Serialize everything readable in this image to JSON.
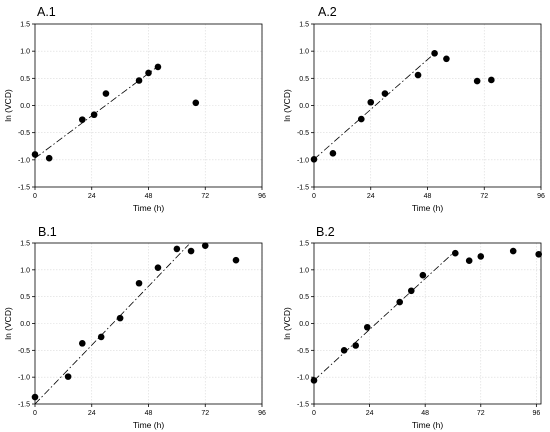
{
  "chart_data": [
    {
      "type": "scatter",
      "panel_label": "A.1",
      "xlabel": "Time (h)",
      "ylabel": "ln (VCD)",
      "xlim": [
        0,
        96
      ],
      "ylim": [
        -1.5,
        1.5
      ],
      "xticks": [
        "0",
        "24",
        "48",
        "72",
        "96"
      ],
      "yticks": [
        "-1.5",
        "-1.0",
        "-0.5",
        "0.0",
        "0.5",
        "1.0",
        "1.5"
      ],
      "grid": true,
      "points": [
        [
          0,
          -0.9
        ],
        [
          6,
          -0.97
        ],
        [
          20,
          -0.26
        ],
        [
          25,
          -0.17
        ],
        [
          30,
          0.22
        ],
        [
          44,
          0.46
        ],
        [
          48,
          0.6
        ],
        [
          52,
          0.71
        ],
        [
          68,
          0.05
        ]
      ],
      "fit_line": [
        [
          0,
          -0.97
        ],
        [
          52,
          0.72
        ]
      ]
    },
    {
      "type": "scatter",
      "panel_label": "A.2",
      "xlabel": "Time (h)",
      "ylabel": "ln (VCD)",
      "xlim": [
        0,
        96
      ],
      "ylim": [
        -1.5,
        1.5
      ],
      "xticks": [
        "0",
        "24",
        "48",
        "72",
        "96"
      ],
      "yticks": [
        "-1.5",
        "-1.0",
        "-0.5",
        "0.0",
        "0.5",
        "1.0",
        "1.5"
      ],
      "grid": true,
      "points": [
        [
          0,
          -0.99
        ],
        [
          8,
          -0.88
        ],
        [
          20,
          -0.25
        ],
        [
          24,
          0.06
        ],
        [
          30,
          0.22
        ],
        [
          44,
          0.56
        ],
        [
          51,
          0.96
        ],
        [
          56,
          0.86
        ],
        [
          69,
          0.45
        ],
        [
          75,
          0.47
        ]
      ],
      "fit_line": [
        [
          0,
          -0.99
        ],
        [
          51,
          0.96
        ]
      ]
    },
    {
      "type": "scatter",
      "panel_label": "B.1",
      "xlabel": "Time (h)",
      "ylabel": "ln (VCD)",
      "xlim": [
        0,
        96
      ],
      "ylim": [
        -1.5,
        1.5
      ],
      "xticks": [
        "0",
        "24",
        "48",
        "72",
        "96"
      ],
      "yticks": [
        "-1.5",
        "-1.0",
        "-0.5",
        "0.0",
        "0.5",
        "1.0",
        "1.5"
      ],
      "grid": true,
      "points": [
        [
          0,
          -1.37
        ],
        [
          14,
          -0.99
        ],
        [
          20,
          -0.37
        ],
        [
          28,
          -0.25
        ],
        [
          36,
          0.1
        ],
        [
          44,
          0.75
        ],
        [
          52,
          1.04
        ],
        [
          60,
          1.39
        ],
        [
          66,
          1.35
        ],
        [
          72,
          1.45
        ],
        [
          85,
          1.18
        ]
      ],
      "fit_line": [
        [
          0,
          -1.5
        ],
        [
          65,
          1.47
        ]
      ]
    },
    {
      "type": "scatter",
      "panel_label": "B.2",
      "xlabel": "Time (h)",
      "ylabel": "ln (VCD)",
      "xlim": [
        0,
        98
      ],
      "ylim": [
        -1.5,
        1.5
      ],
      "xticks": [
        "0",
        "24",
        "48",
        "72",
        "96"
      ],
      "yticks": [
        "-1.5",
        "-1.0",
        "-0.5",
        "0.0",
        "0.5",
        "1.0",
        "1.5"
      ],
      "grid": true,
      "points": [
        [
          0,
          -1.06
        ],
        [
          13,
          -0.5
        ],
        [
          18,
          -0.41
        ],
        [
          23,
          -0.07
        ],
        [
          37,
          0.4
        ],
        [
          42,
          0.61
        ],
        [
          47,
          0.9
        ],
        [
          61,
          1.31
        ],
        [
          67,
          1.17
        ],
        [
          72,
          1.25
        ],
        [
          86,
          1.35
        ],
        [
          97,
          1.29
        ]
      ],
      "fit_line": [
        [
          0,
          -1.06
        ],
        [
          60,
          1.31
        ]
      ]
    }
  ]
}
